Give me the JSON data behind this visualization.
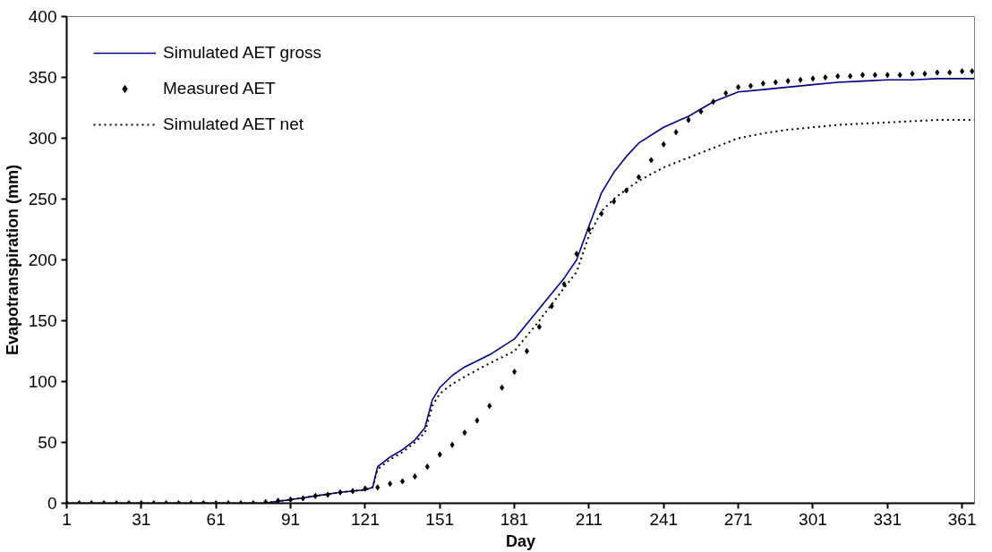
{
  "chart_data": {
    "type": "line",
    "xlabel": "Day",
    "ylabel": "Evapotranspiration (mm)",
    "xlim": [
      1,
      366
    ],
    "xticks": [
      1,
      31,
      61,
      91,
      121,
      151,
      181,
      211,
      241,
      271,
      301,
      331,
      361
    ],
    "ylim": [
      0,
      400
    ],
    "yticks": [
      0,
      50,
      100,
      150,
      200,
      250,
      300,
      350,
      400
    ],
    "grid": false,
    "legend": "top left",
    "series": [
      {
        "name": "Simulated AET gross",
        "color": "#000080",
        "line_style": "solid",
        "x": [
          1,
          80,
          91,
          101,
          111,
          121,
          124,
          126,
          131,
          136,
          141,
          145,
          148,
          151,
          156,
          161,
          171,
          181,
          191,
          201,
          206,
          211,
          216,
          221,
          226,
          231,
          241,
          251,
          261,
          271,
          281,
          291,
          301,
          311,
          321,
          331,
          341,
          351,
          366
        ],
        "values": [
          0,
          0,
          3,
          6,
          9,
          11,
          13,
          30,
          38,
          44,
          52,
          62,
          85,
          95,
          105,
          112,
          122,
          135,
          160,
          185,
          200,
          228,
          255,
          272,
          285,
          296,
          309,
          318,
          330,
          338,
          340,
          342,
          344,
          346,
          347,
          348,
          348,
          349,
          349
        ]
      },
      {
        "name": "Measured AET",
        "color": "#000000",
        "type": "scatter",
        "marker": "diamond",
        "x": [
          1,
          6,
          11,
          16,
          21,
          26,
          31,
          36,
          41,
          46,
          51,
          56,
          61,
          66,
          71,
          76,
          81,
          86,
          91,
          96,
          101,
          106,
          111,
          116,
          121,
          126,
          131,
          136,
          141,
          146,
          151,
          156,
          161,
          166,
          171,
          176,
          181,
          186,
          191,
          196,
          201,
          206,
          211,
          216,
          221,
          226,
          231,
          236,
          241,
          246,
          251,
          256,
          261,
          266,
          271,
          276,
          281,
          286,
          291,
          296,
          301,
          306,
          311,
          316,
          321,
          326,
          331,
          336,
          341,
          346,
          351,
          356,
          361,
          365
        ],
        "values": [
          0,
          0,
          0,
          0,
          0,
          0,
          0,
          0,
          0,
          0,
          0,
          0,
          0,
          0,
          0,
          0,
          1,
          2,
          3,
          4,
          6,
          7,
          9,
          10,
          12,
          13,
          16,
          18,
          22,
          30,
          40,
          48,
          58,
          68,
          80,
          95,
          108,
          125,
          145,
          162,
          180,
          205,
          225,
          238,
          248,
          257,
          268,
          282,
          295,
          305,
          315,
          322,
          330,
          337,
          342,
          343,
          345,
          346,
          347,
          348,
          349,
          350,
          351,
          351,
          352,
          352,
          352,
          352,
          353,
          353,
          354,
          354,
          355,
          355
        ]
      },
      {
        "name": "Simulated AET net",
        "color": "#000000",
        "line_style": "dotted",
        "x": [
          1,
          80,
          91,
          101,
          111,
          121,
          124,
          126,
          131,
          136,
          141,
          145,
          148,
          151,
          156,
          161,
          171,
          181,
          191,
          201,
          206,
          211,
          216,
          221,
          226,
          231,
          241,
          251,
          261,
          271,
          281,
          291,
          301,
          311,
          321,
          331,
          341,
          351,
          366
        ],
        "values": [
          0,
          0,
          3,
          6,
          9,
          11,
          13,
          28,
          36,
          42,
          50,
          58,
          80,
          90,
          98,
          104,
          115,
          125,
          150,
          177,
          190,
          220,
          240,
          250,
          258,
          265,
          276,
          284,
          292,
          300,
          304,
          307,
          309,
          311,
          312,
          313,
          314,
          315,
          315
        ]
      }
    ]
  }
}
